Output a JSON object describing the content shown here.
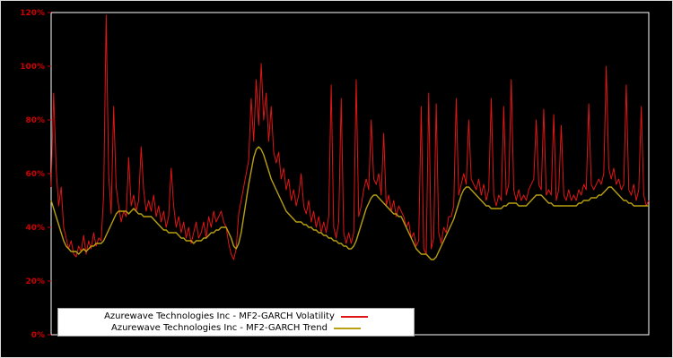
{
  "chart_data": {
    "type": "line",
    "title": "",
    "xlabel": "",
    "ylabel": "",
    "ylim": [
      0,
      120
    ],
    "grid": false,
    "legend_position": "lower-left-inside",
    "background_color": "#000000",
    "frame_color": "#ffffff",
    "tick_color": "#cc0000",
    "y_ticks": [
      "0%",
      "20%",
      "40%",
      "60%",
      "80%",
      "100%",
      "120%"
    ],
    "y_tick_values": [
      0,
      20,
      40,
      60,
      80,
      100,
      120
    ],
    "x_ticks": [],
    "series": [
      {
        "name": "Azurewave Technologies Inc - MF2-GARCH Volatility",
        "color": "#e01515",
        "width": 1,
        "values": [
          55,
          90,
          62,
          48,
          55,
          40,
          36,
          32,
          35,
          30,
          29,
          33,
          31,
          37,
          30,
          35,
          32,
          38,
          33,
          36,
          35,
          52,
          119,
          60,
          45,
          85,
          55,
          48,
          42,
          46,
          44,
          66,
          48,
          52,
          46,
          50,
          70,
          54,
          46,
          50,
          46,
          52,
          44,
          48,
          42,
          46,
          40,
          44,
          62,
          48,
          40,
          44,
          38,
          42,
          36,
          40,
          34,
          38,
          42,
          36,
          38,
          42,
          36,
          44,
          40,
          46,
          42,
          44,
          46,
          42,
          40,
          34,
          30,
          28,
          32,
          45,
          50,
          55,
          60,
          65,
          88,
          72,
          95,
          78,
          101,
          80,
          90,
          72,
          85,
          68,
          64,
          68,
          58,
          62,
          54,
          58,
          50,
          54,
          48,
          52,
          60,
          48,
          45,
          50,
          42,
          46,
          40,
          44,
          38,
          42,
          38,
          44,
          93,
          40,
          36,
          42,
          88,
          38,
          34,
          38,
          34,
          38,
          95,
          44,
          48,
          54,
          58,
          54,
          80,
          58,
          56,
          60,
          52,
          75,
          48,
          52,
          46,
          50,
          44,
          48,
          46,
          44,
          40,
          42,
          36,
          38,
          33,
          35,
          85,
          32,
          30,
          90,
          32,
          36,
          86,
          38,
          34,
          40,
          38,
          44,
          44,
          48,
          88,
          52,
          56,
          60,
          56,
          80,
          58,
          56,
          54,
          58,
          52,
          56,
          50,
          54,
          88,
          52,
          48,
          52,
          50,
          85,
          52,
          56,
          95,
          54,
          50,
          54,
          50,
          52,
          50,
          54,
          56,
          58,
          80,
          56,
          54,
          84,
          52,
          54,
          52,
          82,
          50,
          54,
          78,
          52,
          50,
          54,
          50,
          52,
          50,
          54,
          52,
          56,
          54,
          86,
          56,
          54,
          56,
          58,
          56,
          60,
          100,
          62,
          58,
          62,
          56,
          58,
          54,
          56,
          93,
          54,
          52,
          56,
          50,
          54,
          85,
          52,
          48,
          50
        ]
      },
      {
        "name": "Azurewave Technologies Inc - MF2-GARCH Trend",
        "color": "#b8a010",
        "width": 1.4,
        "values": [
          50,
          47,
          44,
          41,
          38,
          35,
          33,
          32,
          31,
          31,
          31,
          30,
          31,
          32,
          31,
          32,
          33,
          33,
          34,
          34,
          34,
          35,
          37,
          39,
          41,
          43,
          45,
          46,
          46,
          46,
          46,
          45,
          46,
          47,
          46,
          45,
          45,
          44,
          44,
          44,
          44,
          43,
          42,
          41,
          40,
          39,
          39,
          38,
          38,
          38,
          38,
          37,
          36,
          36,
          35,
          35,
          35,
          34,
          35,
          35,
          35,
          36,
          36,
          37,
          38,
          38,
          39,
          39,
          40,
          40,
          40,
          38,
          36,
          33,
          32,
          34,
          38,
          44,
          50,
          56,
          61,
          66,
          69,
          70,
          69,
          67,
          64,
          61,
          58,
          56,
          54,
          52,
          50,
          48,
          46,
          45,
          44,
          43,
          42,
          42,
          42,
          41,
          41,
          40,
          40,
          39,
          39,
          38,
          38,
          37,
          37,
          36,
          36,
          35,
          35,
          34,
          34,
          33,
          33,
          32,
          32,
          33,
          35,
          38,
          41,
          44,
          47,
          49,
          51,
          52,
          52,
          51,
          50,
          49,
          48,
          47,
          46,
          45,
          45,
          44,
          44,
          42,
          40,
          38,
          36,
          34,
          32,
          31,
          30,
          30,
          30,
          29,
          28,
          28,
          29,
          31,
          33,
          35,
          37,
          39,
          41,
          43,
          46,
          49,
          52,
          54,
          55,
          55,
          54,
          53,
          52,
          51,
          50,
          49,
          48,
          48,
          47,
          47,
          47,
          47,
          47,
          48,
          48,
          49,
          49,
          49,
          49,
          48,
          48,
          48,
          48,
          49,
          50,
          51,
          52,
          52,
          52,
          51,
          50,
          49,
          49,
          48,
          48,
          48,
          48,
          48,
          48,
          48,
          48,
          48,
          48,
          49,
          49,
          50,
          50,
          50,
          51,
          51,
          51,
          52,
          52,
          53,
          54,
          55,
          55,
          54,
          53,
          52,
          51,
          50,
          50,
          49,
          49,
          48,
          48,
          48,
          48,
          48,
          48,
          48
        ]
      }
    ]
  },
  "legend": {
    "volatility_label": "Azurewave Technologies Inc - MF2-GARCH Volatility",
    "trend_label": "Azurewave Technologies Inc - MF2-GARCH Trend"
  }
}
